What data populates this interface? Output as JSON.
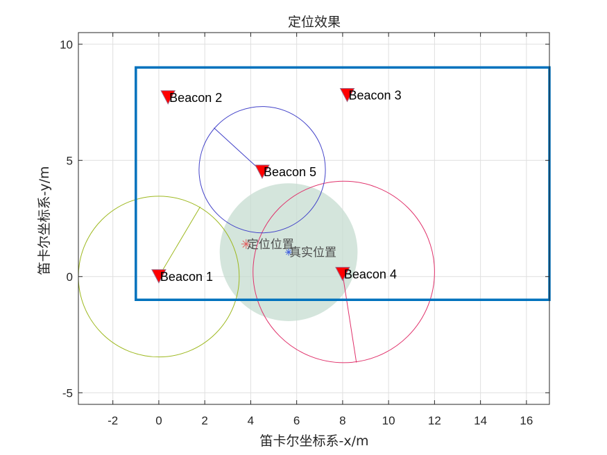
{
  "chart_data": {
    "type": "scatter",
    "title": "定位效果",
    "xlabel": "笛卡尔坐标系-x/m",
    "ylabel": "笛卡尔坐标系-y/m",
    "xlim": [
      -3.5,
      17
    ],
    "ylim": [
      -5.5,
      10.5
    ],
    "xticks": [
      -2,
      0,
      2,
      4,
      6,
      8,
      10,
      12,
      14,
      16
    ],
    "yticks": [
      -5,
      0,
      5,
      10
    ],
    "grid": true,
    "boundary": {
      "x1": -1,
      "y1": -1,
      "x2": 17,
      "y2": 9,
      "color": "#0072BD"
    },
    "beacons": [
      {
        "label": "Beacon 1",
        "x": 0,
        "y": 0,
        "radius": 3.5,
        "circle_color": "#9DB81E",
        "radius_line_end": [
          1.8,
          3.0
        ]
      },
      {
        "label": "Beacon 2",
        "x": 0.4,
        "y": 7.7
      },
      {
        "label": "Beacon 3",
        "x": 8.2,
        "y": 7.8
      },
      {
        "label": "Beacon 4",
        "x": 8.0,
        "y": 0.1,
        "circle_center": [
          8.05,
          0.2
        ],
        "radius": 3.95,
        "circle_color": "#E0306A",
        "radius_line_end": [
          8.6,
          -3.7
        ]
      },
      {
        "label": "Beacon 5",
        "x": 4.5,
        "y": 4.5,
        "circle_center": [
          4.5,
          4.6
        ],
        "radius": 2.75,
        "circle_color": "#4040C8",
        "radius_line_end": [
          2.4,
          6.4
        ]
      }
    ],
    "beacon_color": "#FF0000",
    "uncertainty_region": {
      "x": 5.65,
      "y": 1.05,
      "radius": 3.0,
      "color": "#C5DCD0"
    },
    "estimated_position": {
      "label": "定位位置",
      "x": 3.8,
      "y": 1.4,
      "color": "#E06060"
    },
    "true_position": {
      "label": "真实位置",
      "x": 5.65,
      "y": 1.05,
      "color": "#4060E0"
    }
  }
}
